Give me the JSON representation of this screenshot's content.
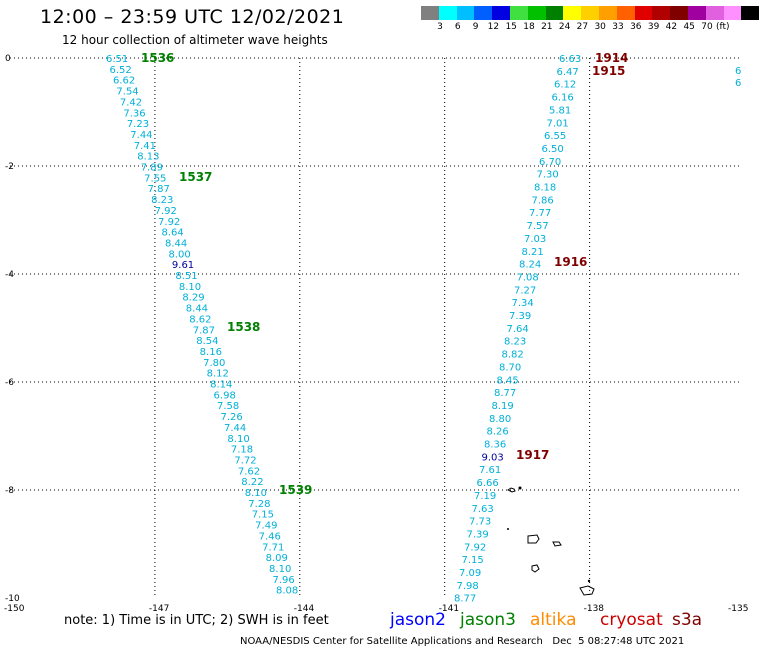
{
  "header": {
    "title": "12:00 – 23:59 UTC 12/02/2021",
    "subtitle": "12 hour collection of altimeter wave heights"
  },
  "legend": {
    "swatches": [
      "#808080",
      "#00ffff",
      "#00bfff",
      "#0060ff",
      "#0000e0",
      "#40e040",
      "#00c000",
      "#008000",
      "#ffff00",
      "#ffd000",
      "#ffa000",
      "#ff6000",
      "#e00000",
      "#b00000",
      "#800000",
      "#a000a0",
      "#e060e0",
      "#ff90ff",
      "#000000"
    ],
    "labels": [
      "3",
      "6",
      "9",
      "12",
      "15",
      "18",
      "21",
      "24",
      "27",
      "30",
      "33",
      "36",
      "39",
      "42",
      "45",
      "70"
    ],
    "unit": "(ft)"
  },
  "axes": {
    "x_ticks": [
      "-150",
      "-147",
      "-144",
      "-141",
      "-138",
      "-135"
    ],
    "y_ticks": [
      "0",
      "-2",
      "-4",
      "-6",
      "-8",
      "-10"
    ]
  },
  "passes": [
    {
      "pass": "1536",
      "satellite": "jason3",
      "color": "#008000"
    },
    {
      "pass": "1537",
      "satellite": "jason3",
      "color": "#008000"
    },
    {
      "pass": "1538",
      "satellite": "jason3",
      "color": "#008000"
    },
    {
      "pass": "1539",
      "satellite": "jason3",
      "color": "#008000"
    },
    {
      "pass": "1914",
      "satellite": "cryosat",
      "color": "#800000"
    },
    {
      "pass": "1915",
      "satellite": "cryosat",
      "color": "#800000"
    },
    {
      "pass": "1916",
      "satellite": "cryosat",
      "color": "#800000"
    },
    {
      "pass": "1917",
      "satellite": "cryosat",
      "color": "#800000"
    }
  ],
  "track_west": {
    "values": [
      "6.51",
      "6.52",
      "6.62",
      "7.54",
      "7.42",
      "7.36",
      "7.23",
      "7.44",
      "7.41",
      "8.13",
      "7.89",
      "7.55",
      "7.87",
      "8.23",
      "7.92",
      "7.92",
      "8.64",
      "8.44",
      "8.00",
      "9.61",
      "8.51",
      "8.10",
      "8.29",
      "8.44",
      "8.62",
      "7.87",
      "8.54",
      "8.16",
      "7.80",
      "8.12",
      "8.14",
      "6.98",
      "7.58",
      "7.26",
      "7.44",
      "8.10",
      "7.18",
      "7.72",
      "7.62",
      "8.22",
      "8.10",
      "7.28",
      "7.15",
      "7.49",
      "7.46",
      "7.71",
      "8.09",
      "8.10",
      "7.96",
      "8.08"
    ]
  },
  "track_east": {
    "values": [
      "6.63",
      "6.47",
      "6.12",
      "6.16",
      "5.81",
      "7.01",
      "6.55",
      "6.50",
      "6.70",
      "7.30",
      "8.18",
      "7.86",
      "7.77",
      "7.57",
      "7.03",
      "8.21",
      "8.24",
      "7.08",
      "7.27",
      "7.34",
      "7.39",
      "7.64",
      "8.23",
      "8.82",
      "8.70",
      "8.45",
      "8.77",
      "8.19",
      "8.80",
      "8.26",
      "8.36",
      "9.03",
      "7.61",
      "6.66",
      "7.19",
      "7.63",
      "7.73",
      "7.39",
      "7.92",
      "7.15",
      "7.09",
      "7.98",
      "8.77"
    ]
  },
  "edge_track": {
    "values": [
      "6",
      "6"
    ]
  },
  "footer": {
    "note": "note: 1) Time is in UTC; 2) SWH is in feet",
    "satellites": [
      {
        "name": "jason2",
        "color": "#0000ff"
      },
      {
        "name": "jason3",
        "color": "#008000"
      },
      {
        "name": "altika",
        "color": "#ff8c00"
      },
      {
        "name": "cryosat",
        "color": "#cc0000"
      },
      {
        "name": "s3a",
        "color": "#800000"
      }
    ],
    "credit": "NOAA/NESDIS Center for Satellite Applications and Research   Dec  5 08:27:48 UTC 2021"
  },
  "colors": {
    "value_text": "#00b0d8",
    "value_high": "#0000a0",
    "grid": "#000000"
  }
}
